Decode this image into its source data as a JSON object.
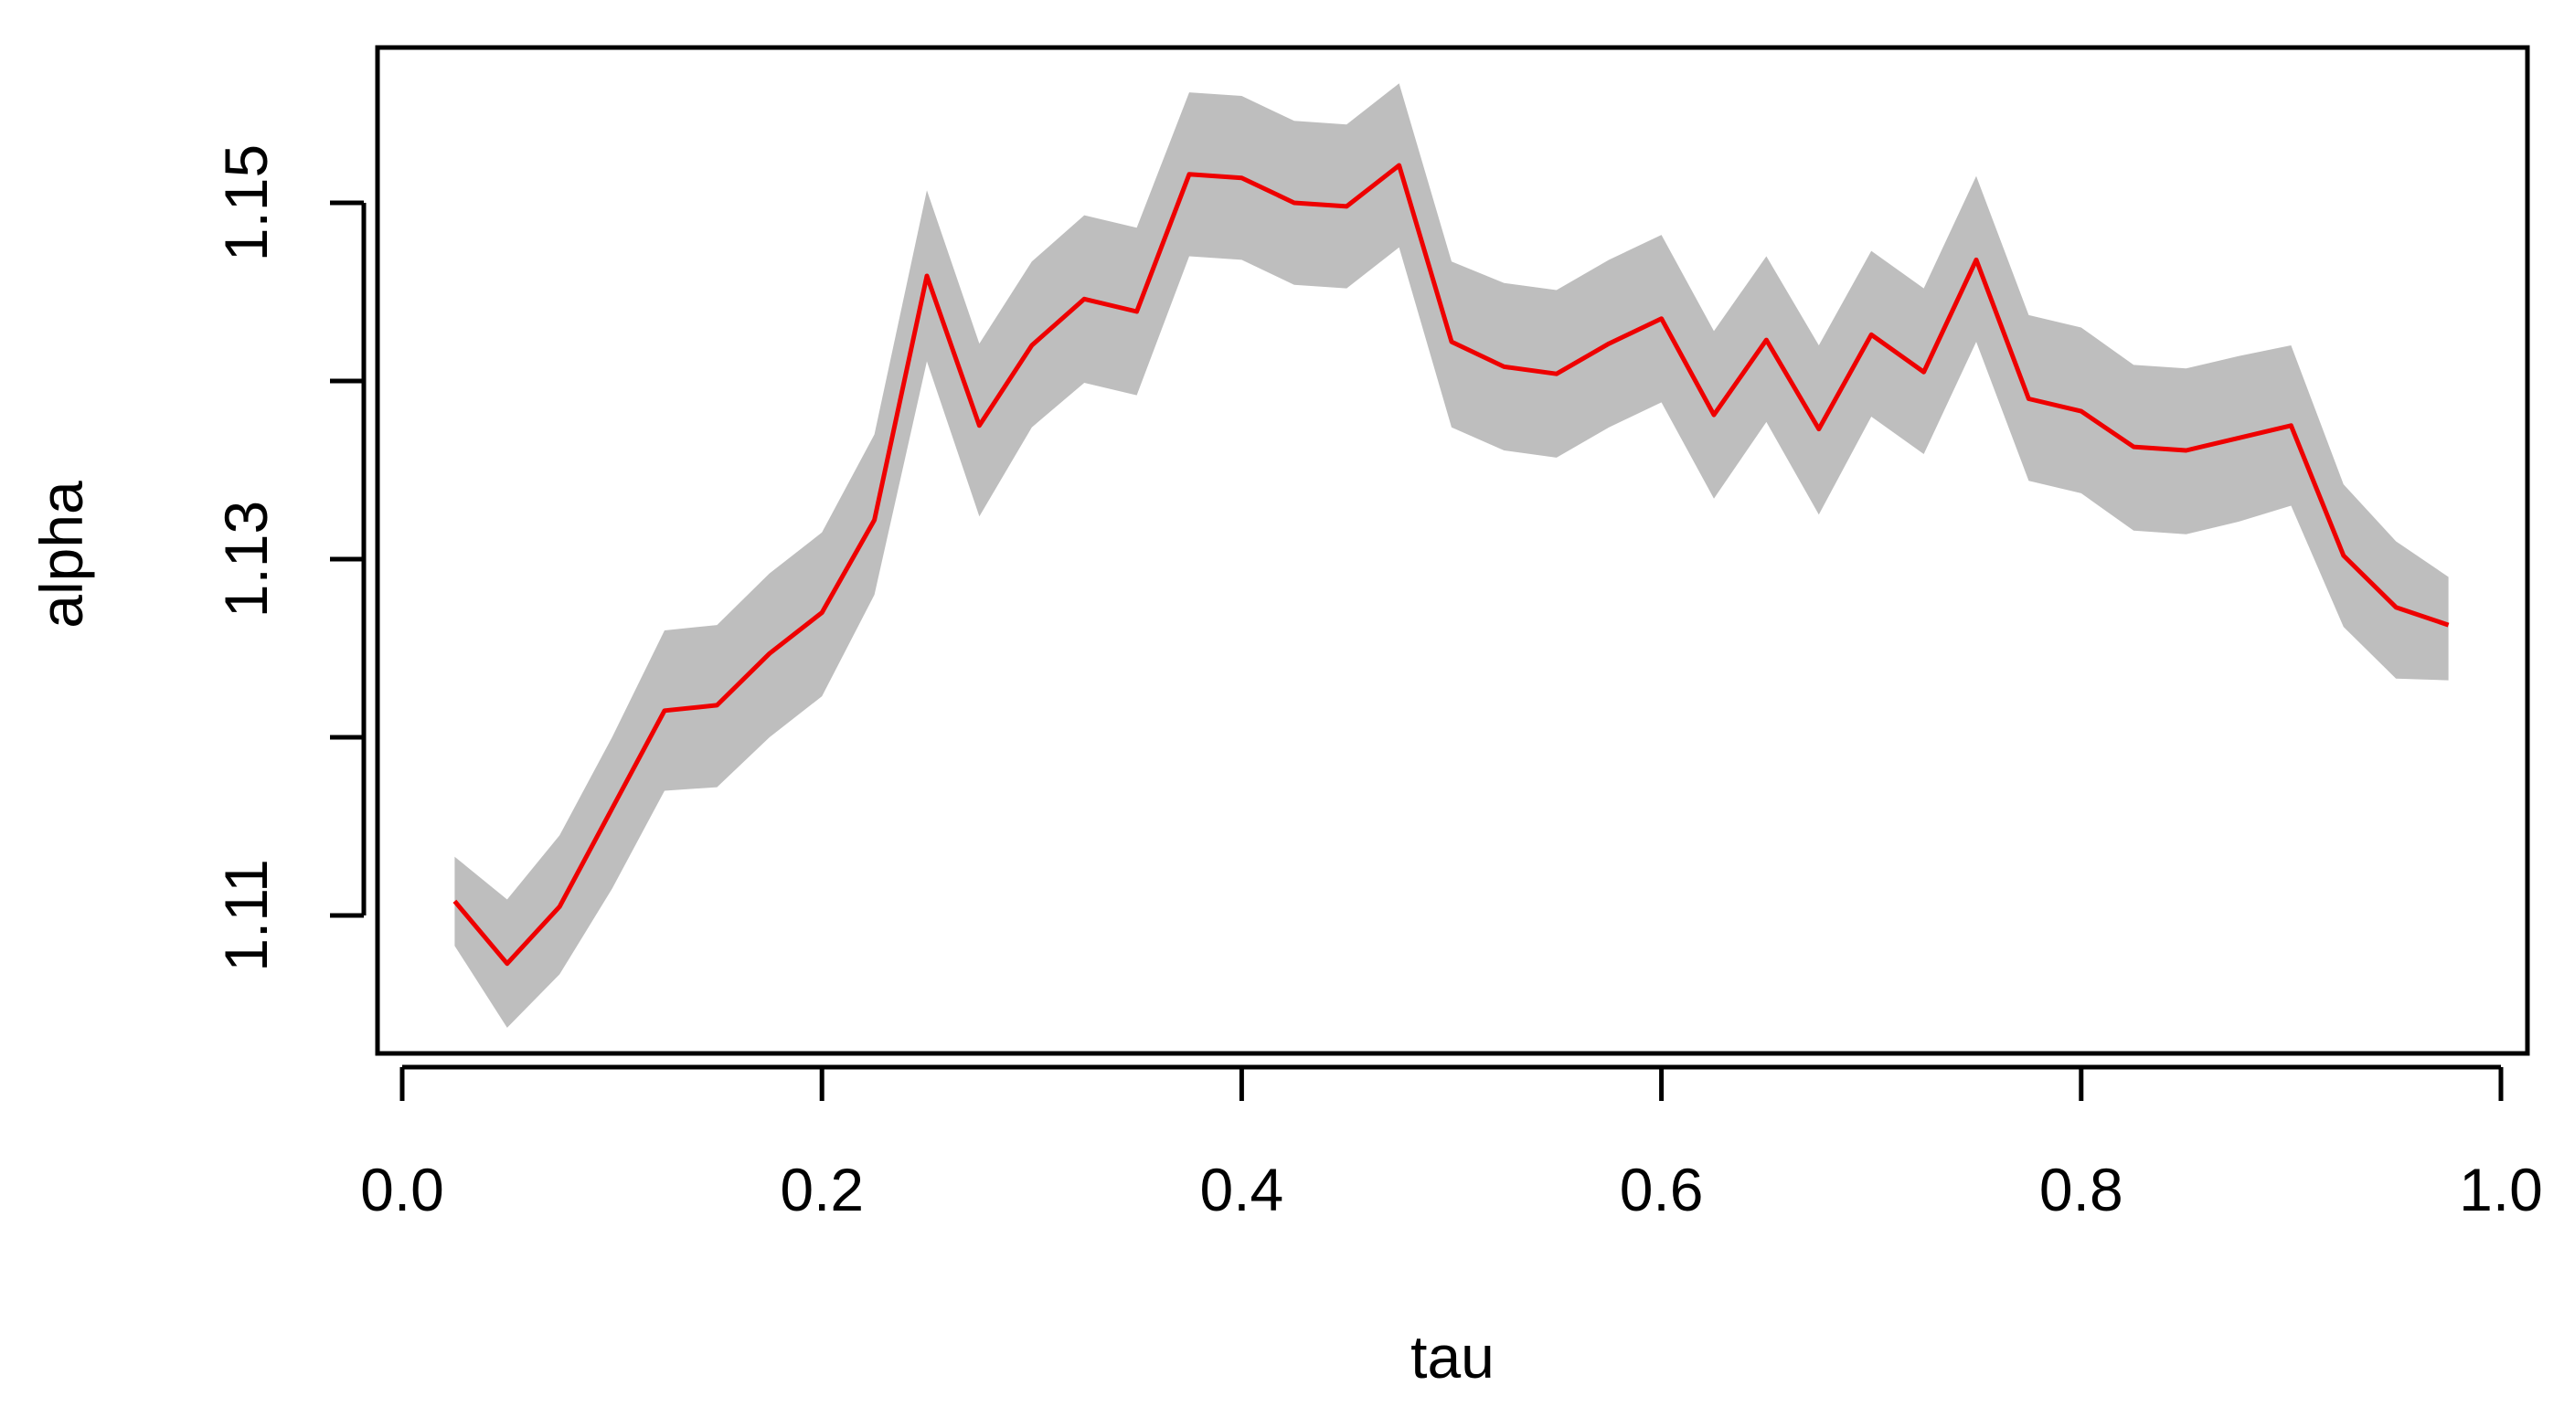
{
  "chart_data": {
    "type": "line",
    "title": "",
    "xlabel": "tau",
    "ylabel": "alpha",
    "xlim": [
      0.0,
      1.0
    ],
    "ylim": [
      1.1017,
      1.1583
    ],
    "x_ticks": [
      "0.0",
      "0.2",
      "0.4",
      "0.6",
      "0.8",
      "1.0"
    ],
    "y_ticks": [
      1.11,
      1.12,
      1.13,
      1.14,
      1.15
    ],
    "y_tick_labels": [
      "1.11",
      "",
      "1.13",
      "",
      "1.15"
    ],
    "grid": false,
    "legend": "none",
    "colors": {
      "line": "#ee0000",
      "band": "#bebebe",
      "axis": "#000000"
    },
    "series": [
      {
        "x": [
          0.025,
          0.05,
          0.075,
          0.1,
          0.125,
          0.15,
          0.175,
          0.2,
          0.225,
          0.25,
          0.275,
          0.3,
          0.325,
          0.35,
          0.375,
          0.4,
          0.425,
          0.45,
          0.475,
          0.5,
          0.525,
          0.55,
          0.575,
          0.6,
          0.625,
          0.65,
          0.675,
          0.7,
          0.725,
          0.75,
          0.775,
          0.8,
          0.825,
          0.85,
          0.875,
          0.9,
          0.925,
          0.95,
          0.975
        ],
        "y": [
          1.1108,
          1.1073,
          1.1105,
          1.116,
          1.1215,
          1.1218,
          1.1247,
          1.127,
          1.1322,
          1.1459,
          1.1375,
          1.142,
          1.1446,
          1.1439,
          1.1516,
          1.1514,
          1.15,
          1.1498,
          1.1521,
          1.1422,
          1.1408,
          1.1404,
          1.1421,
          1.1435,
          1.1381,
          1.1423,
          1.1373,
          1.1426,
          1.1405,
          1.1468,
          1.139,
          1.1383,
          1.1363,
          1.1361,
          1.1368,
          1.1375,
          1.1302,
          1.1273,
          1.1263
        ],
        "lower": [
          1.1083,
          1.1037,
          1.1067,
          1.1115,
          1.117,
          1.1172,
          1.12,
          1.1223,
          1.128,
          1.1411,
          1.1324,
          1.1374,
          1.1399,
          1.1392,
          1.147,
          1.1468,
          1.1454,
          1.1452,
          1.1475,
          1.1374,
          1.1361,
          1.1357,
          1.1374,
          1.1388,
          1.1334,
          1.1377,
          1.1325,
          1.138,
          1.1359,
          1.1422,
          1.1344,
          1.1337,
          1.1316,
          1.1314,
          1.1321,
          1.133,
          1.1262,
          1.1233,
          1.1232
        ],
        "upper": [
          1.1133,
          1.1109,
          1.1145,
          1.12,
          1.126,
          1.1263,
          1.1292,
          1.1315,
          1.137,
          1.1507,
          1.1421,
          1.1467,
          1.1493,
          1.1486,
          1.1562,
          1.156,
          1.1546,
          1.1544,
          1.1567,
          1.1467,
          1.1455,
          1.1451,
          1.1468,
          1.1482,
          1.1428,
          1.147,
          1.142,
          1.1473,
          1.1452,
          1.1515,
          1.1437,
          1.143,
          1.1409,
          1.1407,
          1.1414,
          1.142,
          1.1342,
          1.131,
          1.129
        ]
      }
    ]
  }
}
